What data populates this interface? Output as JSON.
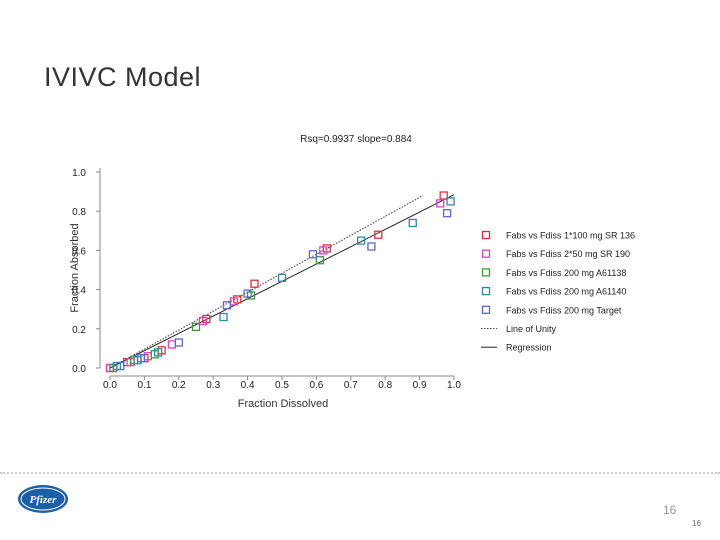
{
  "slide": {
    "title": "IVIVC Model",
    "page_number": "16",
    "page_number_small": "16",
    "logo_text": "Pfizer"
  },
  "colors": {
    "title": "#333333",
    "brand_blue": "#1a5fa8"
  },
  "chart_data": {
    "type": "scatter",
    "title": "Rsq=0.9937  slope=0.884",
    "xlabel": "Fraction Dissolved",
    "ylabel": "Fraction Absorbed",
    "xlim": [
      0,
      1
    ],
    "ylim": [
      0,
      1
    ],
    "x_ticks": [
      "0.0",
      "0.1",
      "0.2",
      "0.3",
      "0.4",
      "0.5",
      "0.6",
      "0.7",
      "0.8",
      "0.9",
      "1.0"
    ],
    "y_ticks": [
      "0.0",
      "0.2",
      "0.4",
      "0.6",
      "0.8",
      "1.0"
    ],
    "legend_position": "right",
    "series": [
      {
        "name": "Fabs vs Fdiss 1*100 mg SR 136",
        "color": "#e0303a",
        "marker": "square",
        "points": [
          [
            0.0,
            0.0
          ],
          [
            0.05,
            0.03
          ],
          [
            0.1,
            0.05
          ],
          [
            0.15,
            0.09
          ],
          [
            0.28,
            0.25
          ],
          [
            0.37,
            0.35
          ],
          [
            0.42,
            0.43
          ],
          [
            0.63,
            0.61
          ],
          [
            0.78,
            0.68
          ],
          [
            0.97,
            0.88
          ]
        ]
      },
      {
        "name": "Fabs vs Fdiss 2*50 mg SR 190",
        "color": "#e040c8",
        "marker": "square",
        "points": [
          [
            0.0,
            0.0
          ],
          [
            0.06,
            0.03
          ],
          [
            0.11,
            0.06
          ],
          [
            0.18,
            0.12
          ],
          [
            0.27,
            0.24
          ],
          [
            0.36,
            0.34
          ],
          [
            0.62,
            0.6
          ],
          [
            0.96,
            0.84
          ]
        ]
      },
      {
        "name": "Fabs vs Fdiss 200 mg A61138",
        "color": "#3a9a3a",
        "marker": "square",
        "points": [
          [
            0.01,
            0.0
          ],
          [
            0.07,
            0.04
          ],
          [
            0.13,
            0.07
          ],
          [
            0.25,
            0.21
          ],
          [
            0.41,
            0.37
          ],
          [
            0.61,
            0.55
          ]
        ]
      },
      {
        "name": "Fabs vs Fdiss 200 mg A61140",
        "color": "#2a8aaa",
        "marker": "square",
        "points": [
          [
            0.02,
            0.01
          ],
          [
            0.08,
            0.04
          ],
          [
            0.14,
            0.08
          ],
          [
            0.33,
            0.26
          ],
          [
            0.5,
            0.46
          ],
          [
            0.73,
            0.65
          ],
          [
            0.88,
            0.74
          ],
          [
            0.99,
            0.85
          ]
        ]
      },
      {
        "name": "Fabs vs Fdiss 200 mg Target",
        "color": "#5a6ad0",
        "marker": "square",
        "points": [
          [
            0.03,
            0.01
          ],
          [
            0.09,
            0.05
          ],
          [
            0.2,
            0.13
          ],
          [
            0.34,
            0.32
          ],
          [
            0.4,
            0.38
          ],
          [
            0.59,
            0.58
          ],
          [
            0.76,
            0.62
          ],
          [
            0.98,
            0.79
          ]
        ]
      },
      {
        "name": "Line of Unity",
        "color": "#444444",
        "style": "dotted",
        "points": [
          [
            0.0,
            0.0
          ],
          [
            0.91,
            0.88
          ]
        ]
      },
      {
        "name": "Regression",
        "color": "#222222",
        "style": "solid",
        "points": [
          [
            0.0,
            0.0
          ],
          [
            1.0,
            0.884
          ]
        ]
      }
    ]
  }
}
